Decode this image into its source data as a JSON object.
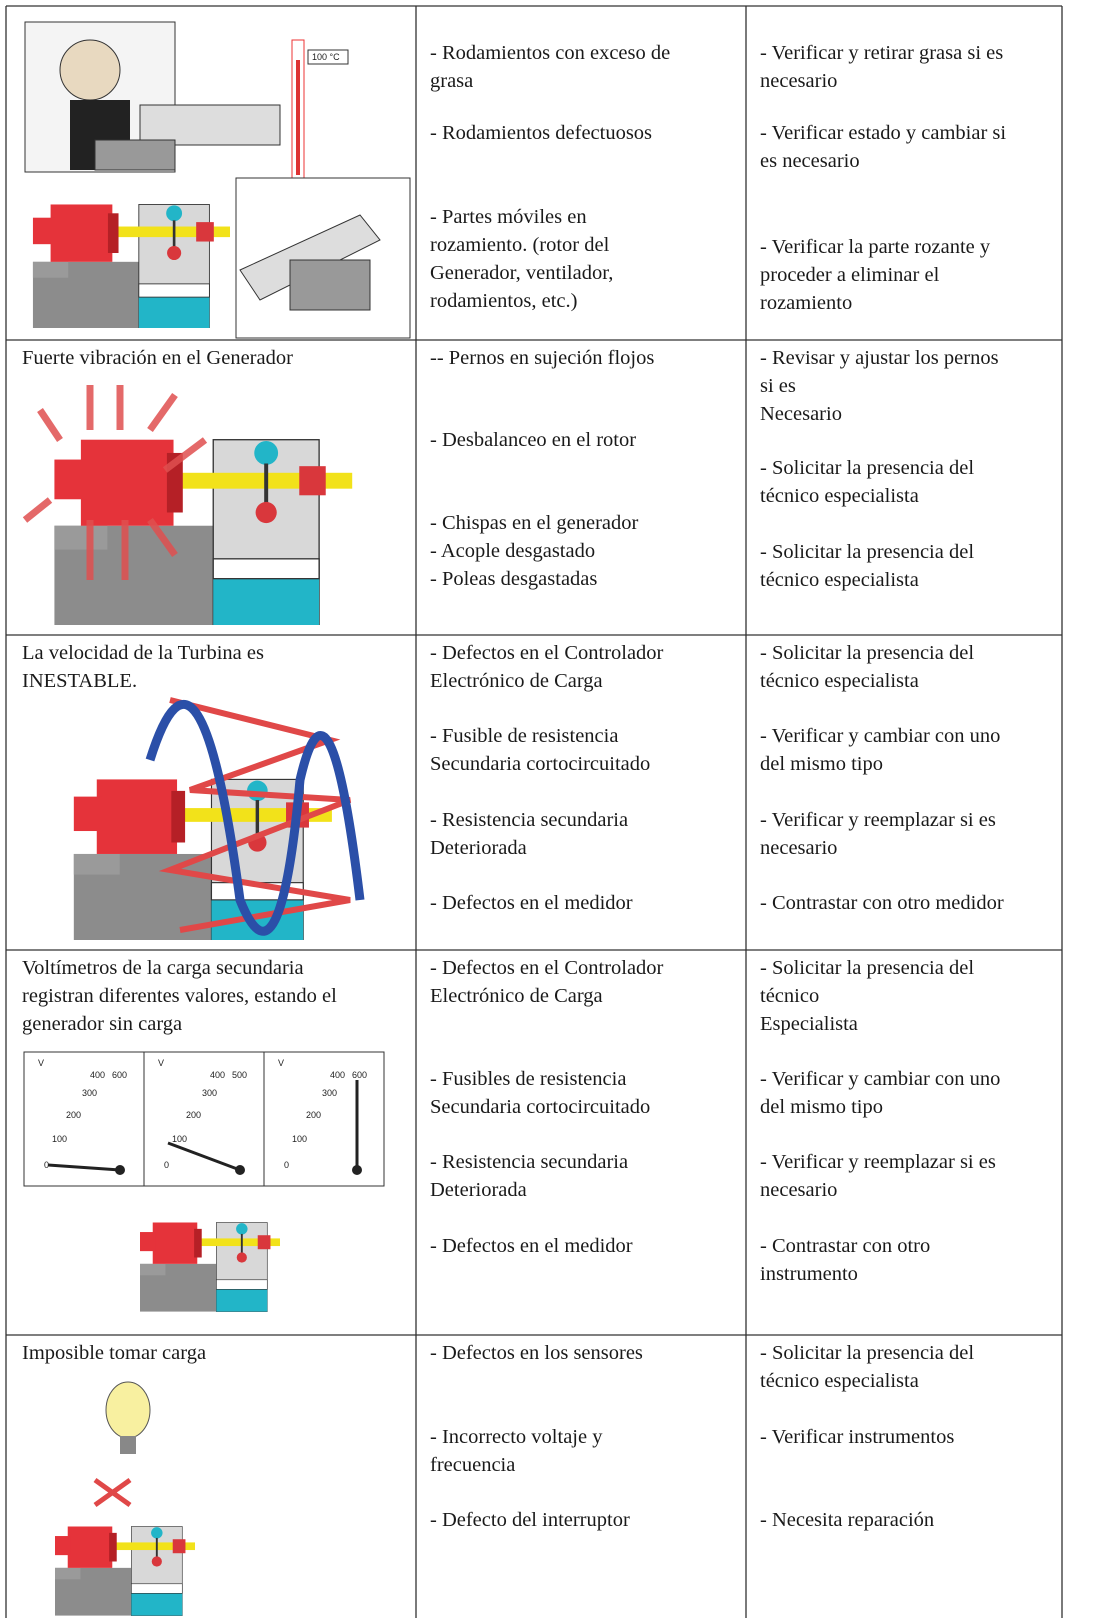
{
  "table": {
    "rows": [
      {
        "problem": null,
        "causes": [
          [
            "- Rodamientos con exceso de",
            "grasa"
          ],
          [
            "- Rodamientos defectuosos"
          ],
          [
            "- Partes móviles en",
            "rozamiento. (rotor del",
            "Generador, ventilador,",
            "rodamientos, etc.)"
          ]
        ],
        "remedies": [
          [
            "- Verificar y retirar grasa si es",
            "necesario"
          ],
          [
            "- Verificar estado y cambiar si",
            "es necesario"
          ],
          [
            "- Verificar la parte rozante y",
            "proceder a eliminar el",
            "rozamiento"
          ]
        ]
      },
      {
        "problem": [
          "Fuerte vibración en el Generador"
        ],
        "causes": [
          [
            "-- Pernos en sujeción flojos"
          ],
          [
            "- Desbalanceo en el rotor"
          ],
          [
            "- Chispas en el generador",
            "- Acople desgastado",
            "- Poleas desgastadas"
          ]
        ],
        "remedies": [
          [
            "- Revisar y ajustar los pernos",
            "si es",
            "Necesario"
          ],
          [
            "- Solicitar la presencia del",
            "técnico especialista"
          ],
          [
            "- Solicitar la presencia del",
            "técnico especialista"
          ]
        ]
      },
      {
        "problem": [
          "La velocidad de la Turbina es",
          "INESTABLE."
        ],
        "causes": [
          [
            "- Defectos en el Controlador",
            "Electrónico de Carga"
          ],
          [
            "- Fusible de resistencia",
            "Secundaria cortocircuitado"
          ],
          [
            "- Resistencia secundaria",
            "Deteriorada"
          ],
          [
            "- Defectos en el medidor"
          ]
        ],
        "remedies": [
          [
            "- Solicitar la presencia del",
            "técnico especialista"
          ],
          [
            "- Verificar y cambiar con uno",
            "del mismo tipo"
          ],
          [
            "- Verificar y reemplazar si es",
            "necesario"
          ],
          [
            "- Contrastar con otro medidor"
          ]
        ]
      },
      {
        "problem": [
          "Voltímetros de la carga secundaria",
          "registran diferentes valores, estando el",
          "generador sin carga"
        ],
        "causes": [
          [
            "- Defectos en el Controlador",
            "Electrónico de Carga"
          ],
          [
            "- Fusibles de resistencia",
            "Secundaria cortocircuitado"
          ],
          [
            "- Resistencia secundaria",
            "Deteriorada"
          ],
          [
            "- Defectos en el medidor"
          ]
        ],
        "remedies": [
          [
            "- Solicitar la presencia del",
            "técnico",
            "Especialista"
          ],
          [
            "- Verificar y cambiar con uno",
            "del mismo tipo"
          ],
          [
            "- Verificar y reemplazar si es",
            "necesario"
          ],
          [
            "- Contrastar con otro",
            "instrumento"
          ]
        ]
      },
      {
        "problem": [
          "Imposible tomar carga"
        ],
        "causes": [
          [
            "- Defectos en los sensores"
          ],
          [
            "- Incorrecto voltaje y",
            "frecuencia"
          ],
          [
            "- Defecto del interruptor"
          ]
        ],
        "remedies": [
          [
            "- Solicitar la presencia del",
            "técnico especialista"
          ],
          [
            "- Verificar instrumentos"
          ],
          [
            "- Necesita reparación"
          ]
        ]
      }
    ],
    "thermometer_label": "100 °C",
    "gauges": [
      {
        "unit": "V",
        "scale": [
          "400",
          "600",
          "300",
          "200",
          "100",
          "0"
        ]
      },
      {
        "unit": "V",
        "scale": [
          "400",
          "500",
          "300",
          "200",
          "100",
          "0"
        ]
      },
      {
        "unit": "V",
        "scale": [
          "400",
          "600",
          "300",
          "200",
          "100",
          "0"
        ]
      }
    ]
  }
}
